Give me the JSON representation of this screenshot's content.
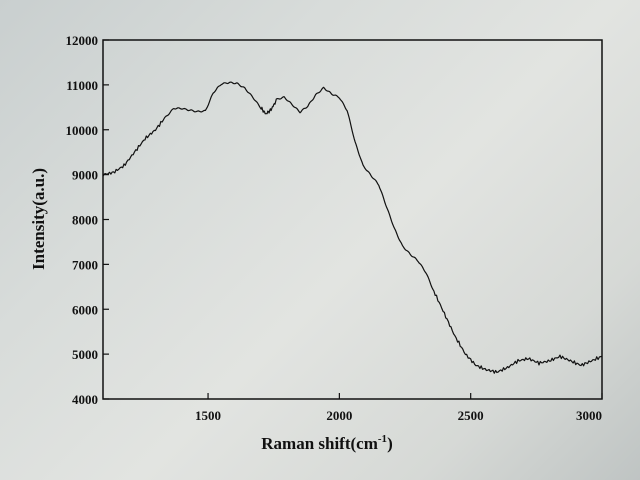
{
  "chart_data": {
    "type": "line",
    "title": "",
    "xlabel": "Raman shift(cm",
    "xlabel_sup": "-1",
    "xlabel_tail": ")",
    "ylabel": "Intensity(a.u.)",
    "xlim": [
      1100,
      3000
    ],
    "ylim": [
      4000,
      12000
    ],
    "x_ticks": [
      1500,
      2000,
      2500,
      3000
    ],
    "x_tick_labels": [
      "1500",
      "2000",
      "2500",
      "3000"
    ],
    "y_ticks": [
      4000,
      5000,
      6000,
      7000,
      8000,
      9000,
      10000,
      11000,
      12000
    ],
    "y_tick_labels": [
      "4000",
      "5000",
      "6000",
      "7000",
      "8000",
      "9000",
      "10000",
      "11000",
      "12000"
    ],
    "grid": false,
    "legend": false,
    "line_color": "#111111",
    "series": [
      {
        "x": [
          1100,
          1140,
          1180,
          1220,
          1260,
          1300,
          1340,
          1370,
          1400,
          1430,
          1460,
          1490,
          1520,
          1550,
          1580,
          1610,
          1640,
          1670,
          1700,
          1720,
          1740,
          1760,
          1790,
          1820,
          1850,
          1880,
          1910,
          1940,
          1970,
          2000,
          2030,
          2060,
          2090,
          2120,
          2150,
          2180,
          2210,
          2240,
          2270,
          2300,
          2330,
          2360,
          2400,
          2440,
          2480,
          2520,
          2560,
          2600,
          2640,
          2680,
          2720,
          2760,
          2800,
          2840,
          2880,
          2920,
          2960,
          3000
        ],
        "y": [
          9000,
          9050,
          9200,
          9500,
          9800,
          10000,
          10300,
          10500,
          10500,
          10450,
          10400,
          10400,
          10800,
          11000,
          11050,
          11050,
          10950,
          10750,
          10500,
          10350,
          10450,
          10650,
          10700,
          10550,
          10400,
          10550,
          10800,
          10950,
          10800,
          10700,
          10400,
          9700,
          9200,
          9000,
          8800,
          8300,
          7800,
          7400,
          7200,
          7050,
          6800,
          6400,
          5900,
          5400,
          5000,
          4750,
          4650,
          4600,
          4700,
          4850,
          4900,
          4800,
          4850,
          4950,
          4850,
          4750,
          4850,
          4950
        ]
      }
    ]
  }
}
